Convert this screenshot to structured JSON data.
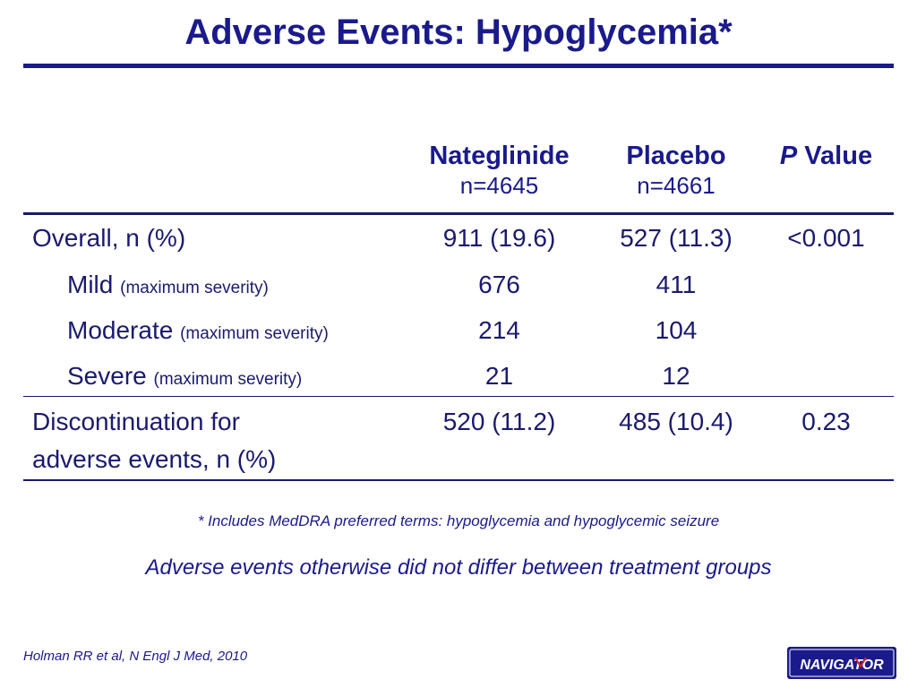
{
  "slide": {
    "title": "Adverse Events: Hypoglycemia*"
  },
  "table": {
    "columns": [
      {
        "name": "Nateglinide",
        "n": "n=4645"
      },
      {
        "name": "Placebo",
        "n": "n=4661"
      },
      {
        "name_italic": "P",
        "name_rest": " Value"
      }
    ],
    "rows": [
      {
        "label": "Overall, n (%)",
        "qualifier": "",
        "values": [
          "911 (19.6)",
          "527 (11.3)",
          "<0.001"
        ]
      },
      {
        "label": "Mild",
        "qualifier": "(maximum severity)",
        "values": [
          "676",
          "411",
          ""
        ]
      },
      {
        "label": "Moderate",
        "qualifier": "(maximum severity)",
        "values": [
          "214",
          "104",
          ""
        ]
      },
      {
        "label": "Severe",
        "qualifier": "(maximum severity)",
        "values": [
          "21",
          "12",
          ""
        ]
      },
      {
        "label_line1": "Discontinuation for",
        "label_line2": "adverse events, n (%)",
        "values": [
          "520 (11.2)",
          "485 (10.4)",
          "0.23"
        ]
      }
    ]
  },
  "footnote": "* Includes MedDRA preferred terms: hypoglycemia and hypoglycemic seizure",
  "summary": "Adverse events otherwise did not differ between treatment groups",
  "citation": "Holman RR et al, N Engl J Med, 2010",
  "logo": {
    "text": "NAVIGATOR",
    "bg_color": "#1a1a8c",
    "text_color": "#ffffff",
    "accent_color": "#d42020"
  }
}
